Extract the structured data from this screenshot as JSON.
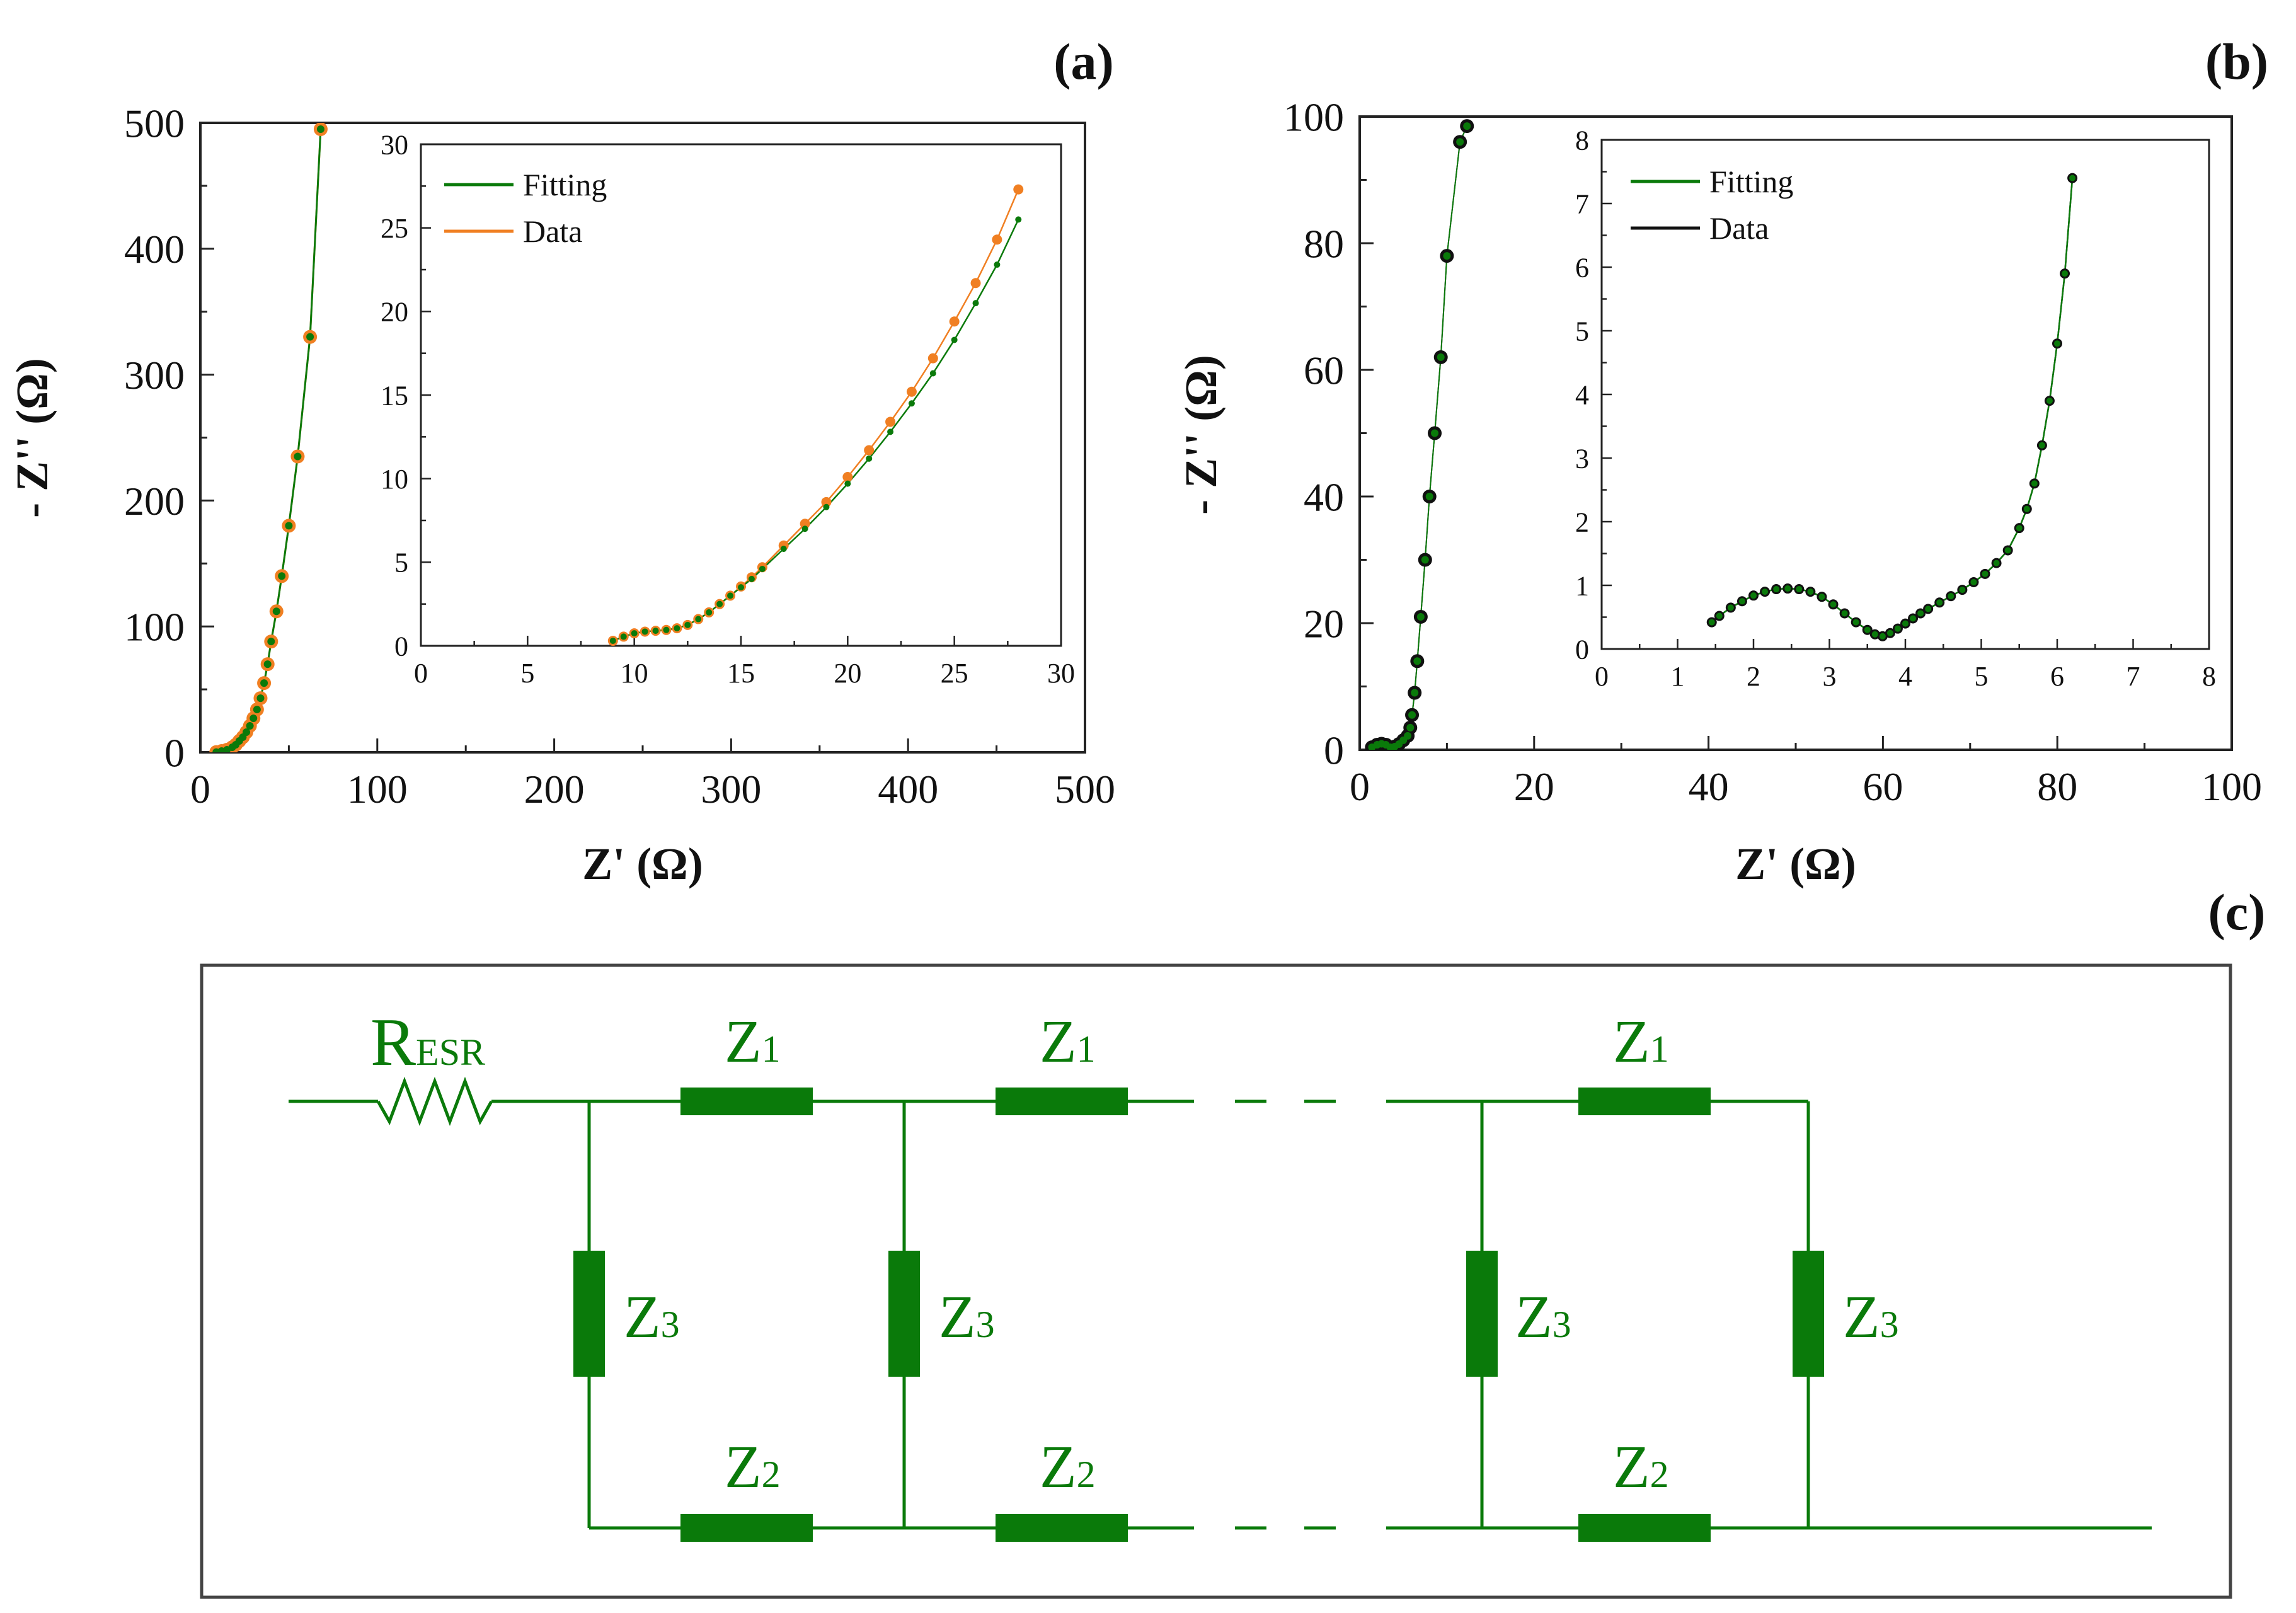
{
  "colors": {
    "green": "#0a7a0a",
    "orange": "#f07f22",
    "black": "#111111",
    "frame": "#444444"
  },
  "chart_data": [
    {
      "id": "a",
      "type": "scatter",
      "panel_label": "(a)",
      "xlabel": "Z' (Ω)",
      "ylabel": "- Z'' (Ω)",
      "xlim": [
        0,
        500
      ],
      "ylim": [
        0,
        500
      ],
      "xticks": [
        "0",
        "100",
        "200",
        "300",
        "400",
        "500"
      ],
      "yticks": [
        "0",
        "100",
        "200",
        "300",
        "400",
        "500"
      ],
      "series": [
        {
          "name": "Fitting",
          "color": "#0a7a0a",
          "x": [
            9,
            12,
            15,
            18,
            20,
            22,
            24,
            26,
            28,
            30,
            32,
            34,
            36,
            38,
            40,
            43,
            46,
            50,
            55,
            62,
            68
          ],
          "y": [
            0.2,
            1,
            2,
            4,
            6,
            9,
            12,
            16,
            21,
            27,
            34,
            43,
            55,
            70,
            88,
            112,
            140,
            180,
            235,
            330,
            495
          ]
        },
        {
          "name": "Data",
          "color": "#f07f22",
          "x": [
            9,
            12,
            15,
            18,
            20,
            22,
            24,
            26,
            28,
            30,
            32,
            34,
            36,
            38,
            40,
            43,
            46,
            50,
            55,
            62,
            68
          ],
          "y": [
            0.2,
            1,
            2,
            4,
            6,
            9,
            12,
            16,
            21,
            27,
            34,
            43,
            55,
            70,
            88,
            112,
            140,
            180,
            235,
            330,
            495
          ]
        }
      ],
      "inset": {
        "xlim": [
          0,
          30
        ],
        "ylim": [
          0,
          30
        ],
        "xticks": [
          "0",
          "5",
          "10",
          "15",
          "20",
          "25",
          "30"
        ],
        "yticks": [
          "0",
          "5",
          "10",
          "15",
          "20",
          "25",
          "30"
        ],
        "legend": [
          "Fitting",
          "Data"
        ],
        "series": [
          {
            "name": "Fitting",
            "color": "#0a7a0a",
            "x": [
              9.0,
              9.5,
              10.0,
              10.5,
              11.0,
              11.5,
              12.0,
              12.5,
              13.0,
              13.5,
              14.0,
              14.5,
              15.0,
              15.5,
              16.0,
              17.0,
              18.0,
              19.0,
              20.0,
              21.0,
              22.0,
              23.0,
              24.0,
              25.0,
              26.0,
              27.0,
              28.0
            ],
            "y": [
              0.3,
              0.55,
              0.75,
              0.85,
              0.9,
              0.95,
              1.05,
              1.25,
              1.6,
              2.0,
              2.5,
              3.0,
              3.5,
              4.0,
              4.6,
              5.8,
              7.0,
              8.3,
              9.7,
              11.2,
              12.8,
              14.5,
              16.3,
              18.3,
              20.5,
              22.8,
              25.5
            ]
          },
          {
            "name": "Data",
            "color": "#f07f22",
            "x": [
              9.0,
              9.5,
              10.0,
              10.5,
              11.0,
              11.5,
              12.0,
              12.5,
              13.0,
              13.5,
              14.0,
              14.5,
              15.0,
              15.5,
              16.0,
              17.0,
              18.0,
              19.0,
              20.0,
              21.0,
              22.0,
              23.0,
              24.0,
              25.0,
              26.0,
              27.0,
              28.0
            ],
            "y": [
              0.3,
              0.55,
              0.75,
              0.85,
              0.9,
              0.95,
              1.05,
              1.25,
              1.6,
              2.0,
              2.5,
              3.0,
              3.55,
              4.1,
              4.7,
              6.0,
              7.3,
              8.6,
              10.1,
              11.7,
              13.4,
              15.2,
              17.2,
              19.4,
              21.7,
              24.3,
              27.3
            ]
          }
        ]
      }
    },
    {
      "id": "b",
      "type": "scatter",
      "panel_label": "(b)",
      "xlabel": "Z' (Ω)",
      "ylabel": "- Z'' (Ω)",
      "xlim": [
        0,
        100
      ],
      "ylim": [
        0,
        100
      ],
      "xticks": [
        "0",
        "20",
        "40",
        "60",
        "80",
        "100"
      ],
      "yticks": [
        "0",
        "20",
        "40",
        "60",
        "80",
        "100"
      ],
      "series": [
        {
          "name": "Fitting",
          "color": "#0a7a0a",
          "x": [
            1.4,
            2.0,
            2.5,
            3.0,
            3.5,
            3.7,
            4.0,
            4.5,
            5.0,
            5.5,
            5.8,
            6.0,
            6.3,
            6.6,
            7.0,
            7.5,
            8.0,
            8.6,
            9.3,
            10.0,
            11.5,
            12.3
          ],
          "y": [
            0.4,
            0.8,
            0.95,
            0.8,
            0.4,
            0.2,
            0.5,
            0.9,
            1.5,
            2.2,
            3.5,
            5.5,
            9,
            14,
            21,
            30,
            40,
            50,
            62,
            78,
            96,
            98.5
          ]
        },
        {
          "name": "Data",
          "color": "#111111",
          "x": [
            1.4,
            2.0,
            2.5,
            3.0,
            3.5,
            3.7,
            4.0,
            4.5,
            5.0,
            5.5,
            5.8,
            6.0,
            6.3,
            6.6,
            7.0,
            7.5,
            8.0,
            8.6,
            9.3,
            10.0,
            11.5,
            12.3
          ],
          "y": [
            0.4,
            0.8,
            0.95,
            0.8,
            0.4,
            0.2,
            0.5,
            0.9,
            1.5,
            2.2,
            3.5,
            5.5,
            9,
            14,
            21,
            30,
            40,
            50,
            62,
            78,
            96,
            98.5
          ]
        }
      ],
      "inset": {
        "xlim": [
          0,
          8
        ],
        "ylim": [
          0,
          8
        ],
        "xticks": [
          "0",
          "1",
          "2",
          "3",
          "4",
          "5",
          "6",
          "7",
          "8"
        ],
        "yticks": [
          "0",
          "1",
          "2",
          "3",
          "4",
          "5",
          "6",
          "7",
          "8"
        ],
        "legend": [
          "Fitting",
          "Data"
        ],
        "series": [
          {
            "name": "Fitting",
            "color": "#0a7a0a",
            "x": [
              1.45,
              1.55,
              1.7,
              1.85,
              2.0,
              2.15,
              2.3,
              2.45,
              2.6,
              2.75,
              2.9,
              3.05,
              3.2,
              3.35,
              3.5,
              3.6,
              3.7,
              3.8,
              3.9,
              4.0,
              4.1,
              4.2,
              4.3,
              4.45,
              4.6,
              4.75,
              4.9,
              5.05,
              5.2,
              5.35,
              5.5,
              5.6,
              5.7,
              5.8,
              5.9,
              6.0,
              6.1,
              6.2
            ],
            "y": [
              0.42,
              0.52,
              0.65,
              0.75,
              0.84,
              0.9,
              0.94,
              0.95,
              0.94,
              0.9,
              0.82,
              0.7,
              0.56,
              0.42,
              0.3,
              0.23,
              0.2,
              0.25,
              0.32,
              0.4,
              0.48,
              0.56,
              0.63,
              0.73,
              0.83,
              0.93,
              1.05,
              1.18,
              1.35,
              1.55,
              1.9,
              2.2,
              2.6,
              3.2,
              3.9,
              4.8,
              5.9,
              7.4
            ]
          },
          {
            "name": "Data",
            "color": "#111111",
            "x": [
              1.45,
              1.55,
              1.7,
              1.85,
              2.0,
              2.15,
              2.3,
              2.45,
              2.6,
              2.75,
              2.9,
              3.05,
              3.2,
              3.35,
              3.5,
              3.6,
              3.7,
              3.8,
              3.9,
              4.0,
              4.1,
              4.2,
              4.3,
              4.45,
              4.6,
              4.75,
              4.9,
              5.05,
              5.2,
              5.35,
              5.5,
              5.6,
              5.7,
              5.8,
              5.9,
              6.0,
              6.1,
              6.2
            ],
            "y": [
              0.42,
              0.52,
              0.65,
              0.75,
              0.84,
              0.9,
              0.94,
              0.95,
              0.94,
              0.9,
              0.82,
              0.7,
              0.56,
              0.42,
              0.3,
              0.23,
              0.2,
              0.25,
              0.32,
              0.4,
              0.48,
              0.56,
              0.63,
              0.73,
              0.83,
              0.93,
              1.05,
              1.18,
              1.35,
              1.55,
              1.9,
              2.2,
              2.6,
              3.2,
              3.9,
              4.8,
              5.9,
              7.4
            ]
          }
        ]
      }
    }
  ],
  "circuit": {
    "panel_label": "(c)",
    "resistor": {
      "main": "R",
      "sub": "ESR"
    },
    "z1": {
      "main": "Z",
      "sub": "1"
    },
    "z2": {
      "main": "Z",
      "sub": "2"
    },
    "z3": {
      "main": "Z",
      "sub": "3"
    }
  }
}
